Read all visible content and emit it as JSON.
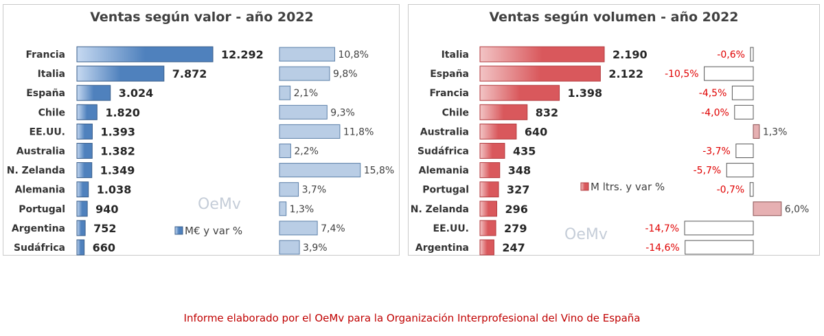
{
  "colors": {
    "value_bar": "#4f81bd",
    "value_pct": "#b9cde5",
    "volume_bar": "#d9585c",
    "volume_pos": "#e6b0b2",
    "negative_text": "#e00000",
    "footer": "#c00000"
  },
  "chart_data": [
    {
      "type": "bar",
      "orientation": "horizontal",
      "title": "Ventas según valor - año 2022",
      "legend": "M€ y var %",
      "watermark": "OeMv",
      "categories": [
        "Francia",
        "Italia",
        "España",
        "Chile",
        "EE.UU.",
        "Australia",
        "N. Zelanda",
        "Alemania",
        "Portugal",
        "Argentina",
        "Sudáfrica"
      ],
      "values": [
        12292,
        7872,
        3024,
        1820,
        1393,
        1382,
        1349,
        1038,
        940,
        752,
        660
      ],
      "value_labels": [
        "12.292",
        "7.872",
        "3.024",
        "1.820",
        "1.393",
        "1.382",
        "1.349",
        "1.038",
        "940",
        "752",
        "660"
      ],
      "changes": [
        10.8,
        9.8,
        2.1,
        9.3,
        11.8,
        2.2,
        15.8,
        3.7,
        1.3,
        7.4,
        3.9
      ],
      "change_labels": [
        "10,8%",
        "9,8%",
        "2,1%",
        "9,3%",
        "11,8%",
        "2,2%",
        "15,8%",
        "3,7%",
        "1,3%",
        "7,4%",
        "3,9%"
      ]
    },
    {
      "type": "bar",
      "orientation": "horizontal",
      "title": "Ventas según volumen - año 2022",
      "legend": "M ltrs. y var %",
      "watermark": "OeMv",
      "categories": [
        "Italia",
        "España",
        "Francia",
        "Chile",
        "Australia",
        "Sudáfrica",
        "Alemania",
        "Portugal",
        "N. Zelanda",
        "EE.UU.",
        "Argentina"
      ],
      "values": [
        2190,
        2122,
        1398,
        832,
        640,
        435,
        348,
        327,
        296,
        279,
        247
      ],
      "value_labels": [
        "2.190",
        "2.122",
        "1.398",
        "832",
        "640",
        "435",
        "348",
        "327",
        "296",
        "279",
        "247"
      ],
      "changes": [
        -0.6,
        -10.5,
        -4.5,
        -4.0,
        1.3,
        -3.7,
        -5.7,
        -0.7,
        6.0,
        -14.7,
        -14.6
      ],
      "change_labels": [
        "-0,6%",
        "-10,5%",
        "-4,5%",
        "-4,0%",
        "1,3%",
        "-3,7%",
        "-5,7%",
        "-0,7%",
        "6,0%",
        "-14,7%",
        "-14,6%"
      ]
    }
  ],
  "footer": "Informe elaborado por el OeMv para la Organización Interprofesional del Vino de España"
}
